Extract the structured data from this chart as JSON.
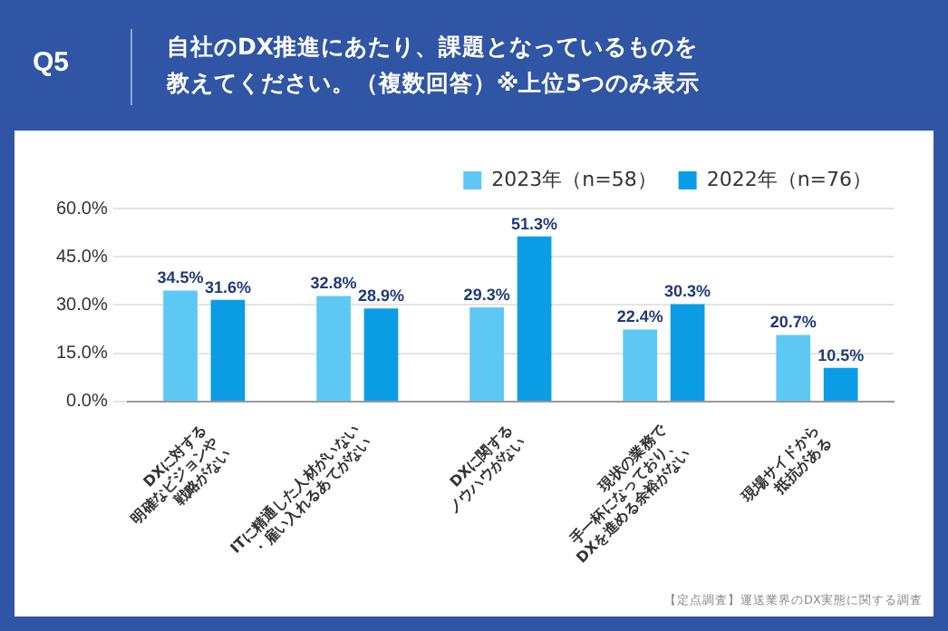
{
  "chart_data": {
    "type": "bar",
    "title": "自社のDX推進にあたり、課題となっているものを教えてください。（複数回答）※上位5つのみ表示",
    "annotations": [
      "Q5",
      "【定点調査】運送業界のDX実態に関する調査"
    ],
    "categories": [
      "DXに対する\n明確なビジョンや\n戦略がない",
      "ITに精通した人材がいない\n・雇い入れるあてがない",
      "DXに関する\nノウハウがない",
      "現状の業務で\n手一杯になっており、\nDXを進める余裕がない",
      "現場サイドから\n抵抗がある"
    ],
    "series": [
      {
        "name": "2023年（n=58）",
        "color": "#5ec8f5",
        "values": [
          34.5,
          32.8,
          29.3,
          22.4,
          20.7
        ],
        "value_labels": [
          "34.5%",
          "32.8%",
          "29.3%",
          "22.4%",
          "20.7%"
        ]
      },
      {
        "name": "2022年（n=76）",
        "color": "#0a9de6",
        "values": [
          31.6,
          28.9,
          51.3,
          30.3,
          10.5
        ],
        "value_labels": [
          "31.6%",
          "28.9%",
          "51.3%",
          "30.3%",
          "10.5%"
        ]
      }
    ],
    "ylim": [
      0,
      60
    ],
    "yticks": [
      {
        "value": 0,
        "label": "0.0%"
      },
      {
        "value": 15,
        "label": "15.0%"
      },
      {
        "value": 30,
        "label": "30.0%"
      },
      {
        "value": 45,
        "label": "45.0%"
      },
      {
        "value": 60,
        "label": "60.0%"
      }
    ],
    "grid": "y",
    "legend": "top right"
  }
}
